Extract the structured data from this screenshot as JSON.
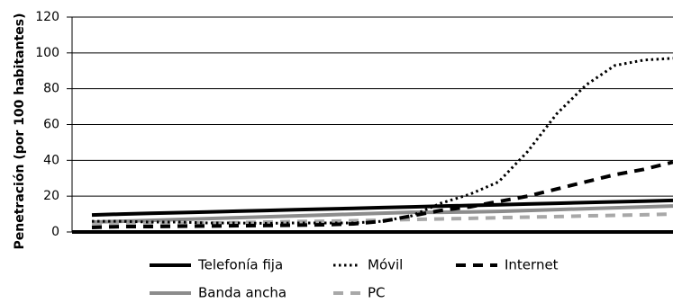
{
  "chart_data": {
    "type": "line",
    "title": "",
    "xlabel": "",
    "ylabel": "Penetración (por 100 habitantes)",
    "ylim": [
      0,
      120
    ],
    "yticks": [
      0,
      20,
      40,
      60,
      80,
      100,
      120
    ],
    "grid": true,
    "legend_position": "bottom",
    "x": [
      0,
      1,
      2,
      3,
      4,
      5,
      6,
      7,
      8,
      9,
      10,
      11,
      12,
      13,
      14,
      15,
      16,
      17,
      18,
      19,
      20
    ],
    "series": [
      {
        "name": "Telefonía fija",
        "color": "#000000",
        "style": "solid",
        "values": [
          9.5,
          10,
          10.4,
          10.8,
          11.2,
          11.6,
          12,
          12.4,
          12.8,
          13.2,
          13.6,
          14,
          14.4,
          14.8,
          15.2,
          15.6,
          16,
          16.4,
          16.8,
          17.2,
          17.6
        ]
      },
      {
        "name": "Móvil",
        "color": "#000000",
        "style": "dotted",
        "values": [
          6,
          6,
          5.5,
          5.5,
          5,
          5,
          4.8,
          5,
          5,
          5,
          6,
          9,
          16,
          21,
          28,
          45,
          66,
          82,
          93,
          96,
          97
        ]
      },
      {
        "name": "Internet",
        "color": "#000000",
        "style": "dashed",
        "values": [
          2.5,
          3,
          3,
          3.2,
          3.3,
          3.5,
          3.6,
          3.8,
          4,
          4.5,
          6,
          9,
          12,
          14,
          17,
          20,
          24,
          28,
          32,
          35,
          39
        ]
      },
      {
        "name": "Banda ancha",
        "color": "#8c8c8c",
        "style": "solid",
        "values": [
          5.5,
          6,
          6.5,
          7,
          7.5,
          8,
          8.5,
          9,
          9.5,
          10,
          10.5,
          11,
          11,
          11.2,
          11.5,
          12,
          12.5,
          13,
          13.5,
          14,
          14.5
        ]
      },
      {
        "name": "PC",
        "color": "#a8a8a8",
        "style": "dashed",
        "values": [
          4,
          4.2,
          4.5,
          4.8,
          5,
          5.2,
          5.5,
          5.8,
          6,
          6.3,
          6.6,
          7,
          7.3,
          7.6,
          8,
          8.3,
          8.6,
          9,
          9.3,
          9.6,
          10
        ]
      }
    ]
  }
}
